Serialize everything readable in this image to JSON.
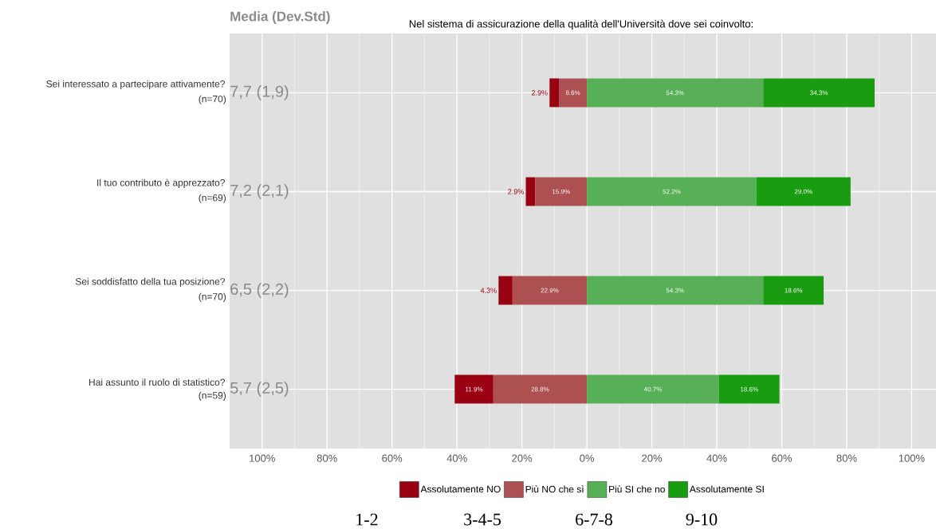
{
  "chart_data": {
    "type": "bar",
    "orientation": "horizontal",
    "title": "Nel sistema di assicurazione della qualità dell'Università dove sei coinvolto:",
    "categories": [
      "Sei interessato a partecipare attivamente?",
      "Il tuo contributo è apprezzato?",
      "Sei soddisfatto della tua posizione?",
      "Hai assunto il ruolo di statistico?"
    ],
    "series": [
      {
        "name": "Assolutamente NO",
        "color": "#990012",
        "values": [
          2.9,
          2.9,
          4.3,
          11.9
        ],
        "base": [
          -11.5,
          -18.8,
          -27.2,
          -40.7
        ],
        "value_labels": [
          "2.9%",
          "2.9%",
          "4.3%",
          "11.9%"
        ]
      },
      {
        "name": "Più NO che sì",
        "color": "#ad5052",
        "values": [
          8.6,
          15.9,
          22.9,
          28.8
        ],
        "base": [
          -8.6,
          -15.9,
          -22.9,
          -28.8
        ],
        "value_labels": [
          "8.6%",
          "15.9%",
          "22.9%",
          "28.8%"
        ]
      },
      {
        "name": "Più SI che no",
        "color": "#57b055",
        "values": [
          54.3,
          52.2,
          54.3,
          40.7
        ],
        "base": [
          0,
          0,
          0,
          0
        ],
        "value_labels": [
          "54.3%",
          "52.2%",
          "54.3%",
          "40.7%"
        ]
      },
      {
        "name": "Assolutamente SI",
        "color": "#1a9c10",
        "values": [
          34.3,
          29.0,
          18.6,
          18.6
        ],
        "base": [
          54.3,
          52.2,
          54.3,
          40.7
        ],
        "value_labels": [
          "34.3%",
          "29.0%",
          "18.6%",
          "18.6%"
        ]
      }
    ],
    "xlim": [
      -110,
      107.5
    ],
    "xticks": [
      {
        "value": -100,
        "label": "100%"
      },
      {
        "value": -80,
        "label": "80%"
      },
      {
        "value": -60,
        "label": "60%"
      },
      {
        "value": -40,
        "label": "40%"
      },
      {
        "value": -20,
        "label": "20%"
      },
      {
        "value": 0,
        "label": "0%"
      },
      {
        "value": 20,
        "label": "20%"
      },
      {
        "value": 40,
        "label": "40%"
      },
      {
        "value": 60,
        "label": "60%"
      },
      {
        "value": 80,
        "label": "80%"
      },
      {
        "value": 100,
        "label": "100%"
      }
    ],
    "grid": true,
    "legend": "bottom",
    "annotations": [
      "Media (Dev.Std)",
      "7,7 (1,9)",
      "7,2 (2,1)",
      "6,5 (2,2)",
      "5,7 (2,5)",
      "(n=70)",
      "(n=69)",
      "(n=70)",
      "(n=59)",
      "1-2",
      "3-4-5",
      "6-7-8",
      "9-10"
    ]
  }
}
